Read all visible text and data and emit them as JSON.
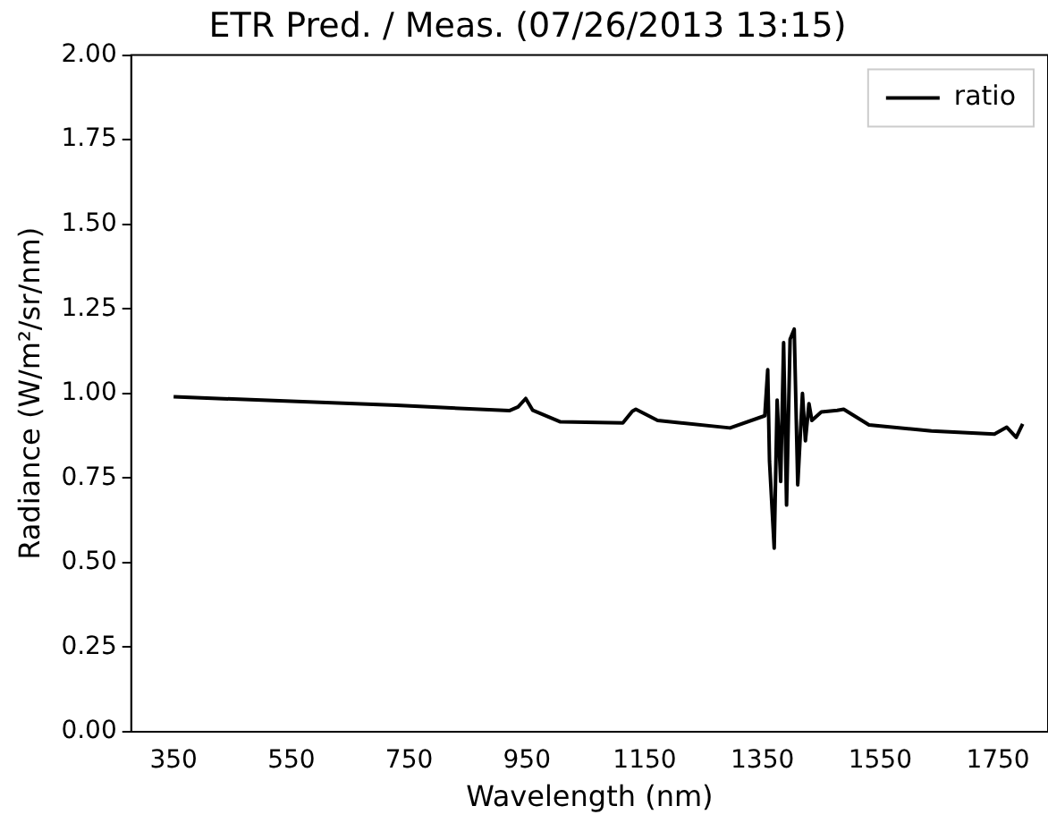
{
  "chart_data": {
    "type": "line",
    "title": "ETR Pred. / Meas. (07/26/2013 13:15)",
    "xlabel": "Wavelength (nm)",
    "ylabel": "Radiance (W/m²/sr/nm)",
    "xlim": [
      278,
      1835
    ],
    "xticks": [
      350,
      550,
      750,
      950,
      1150,
      1350,
      1550,
      1750
    ],
    "ylim": [
      0,
      2
    ],
    "yticks": [
      {
        "value": 0,
        "label": "0.00"
      },
      {
        "value": 0.25,
        "label": "0.25"
      },
      {
        "value": 0.5,
        "label": "0.50"
      },
      {
        "value": 0.75,
        "label": "0.75"
      },
      {
        "value": 1,
        "label": "1.00"
      },
      {
        "value": 1.25,
        "label": "1.25"
      },
      {
        "value": 1.5,
        "label": "1.50"
      },
      {
        "value": 1.75,
        "label": "1.75"
      },
      {
        "value": 2,
        "label": "2.00"
      }
    ],
    "grid": false,
    "legend": "top right",
    "marker": "none",
    "line_style": "solid",
    "series": [
      {
        "name": "ratio",
        "color": "#000000",
        "x": [
          350,
          728,
          920,
          935,
          948,
          960,
          1007,
          1113,
          1129,
          1135,
          1172,
          1295,
          1354,
          1359,
          1362,
          1370,
          1375,
          1381,
          1386,
          1391,
          1397,
          1404,
          1410,
          1418,
          1423,
          1429,
          1434,
          1450,
          1477,
          1488,
          1531,
          1637,
          1744,
          1765,
          1781,
          1792
        ],
        "values": [
          0.99,
          0.965,
          0.949,
          0.96,
          0.985,
          0.95,
          0.916,
          0.913,
          0.947,
          0.953,
          0.92,
          0.898,
          0.934,
          1.07,
          0.8,
          0.543,
          0.98,
          0.74,
          1.15,
          0.67,
          1.16,
          1.19,
          0.73,
          1.0,
          0.86,
          0.97,
          0.92,
          0.945,
          0.95,
          0.953,
          0.907,
          0.889,
          0.88,
          0.9,
          0.87,
          0.91
        ]
      }
    ]
  }
}
